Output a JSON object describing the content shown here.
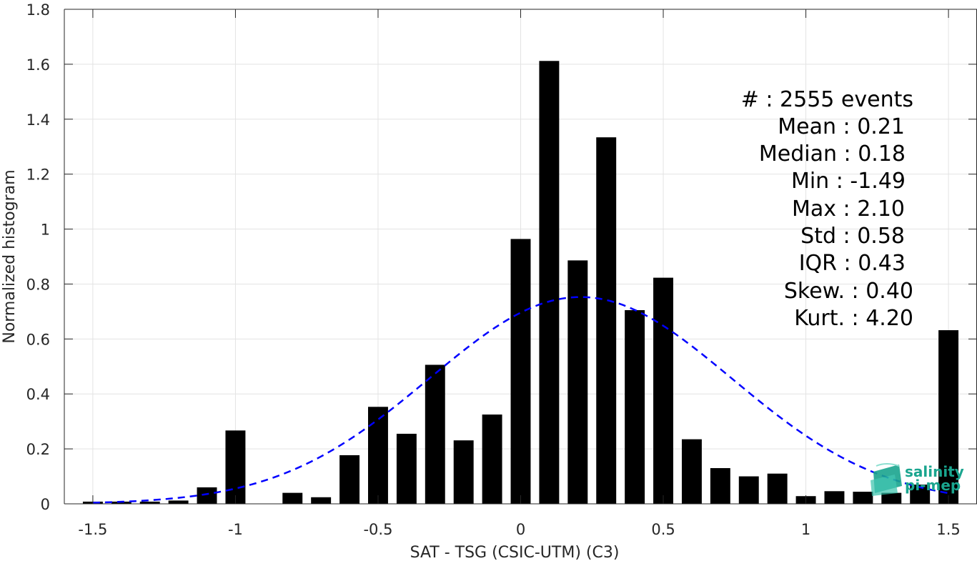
{
  "chart_data": {
    "type": "bar",
    "xlabel": "SAT - TSG (CSIC-UTM) (C3)",
    "ylabel": "Normalized histogram",
    "xlim": [
      -1.6,
      1.6
    ],
    "ylim": [
      0,
      1.8
    ],
    "grid": true,
    "bar_color": "#000000",
    "fit_color": "#0000ff",
    "x_ticks": [
      {
        "value": -1.5,
        "label": "-1.5"
      },
      {
        "value": -1.0,
        "label": "-1"
      },
      {
        "value": -0.5,
        "label": "-0.5"
      },
      {
        "value": 0.0,
        "label": "0"
      },
      {
        "value": 0.5,
        "label": "0.5"
      },
      {
        "value": 1.0,
        "label": "1"
      },
      {
        "value": 1.5,
        "label": "1.5"
      }
    ],
    "y_ticks": [
      {
        "value": 0,
        "label": "0"
      },
      {
        "value": 0.2,
        "label": "0.2"
      },
      {
        "value": 0.4,
        "label": "0.4"
      },
      {
        "value": 0.6,
        "label": "0.6"
      },
      {
        "value": 0.8,
        "label": "0.8"
      },
      {
        "value": 1.0,
        "label": "1"
      },
      {
        "value": 1.2,
        "label": "1.2"
      },
      {
        "value": 1.4,
        "label": "1.4"
      },
      {
        "value": 1.6,
        "label": "1.6"
      },
      {
        "value": 1.8,
        "label": "1.8"
      }
    ],
    "bar_width": 0.07,
    "bins": [
      {
        "x": -1.5,
        "y": 0.008
      },
      {
        "x": -1.4,
        "y": 0.008
      },
      {
        "x": -1.3,
        "y": 0.008
      },
      {
        "x": -1.2,
        "y": 0.012
      },
      {
        "x": -1.1,
        "y": 0.06
      },
      {
        "x": -1.0,
        "y": 0.267
      },
      {
        "x": -0.9,
        "y": 0.0
      },
      {
        "x": -0.8,
        "y": 0.04
      },
      {
        "x": -0.7,
        "y": 0.024
      },
      {
        "x": -0.6,
        "y": 0.177
      },
      {
        "x": -0.5,
        "y": 0.353
      },
      {
        "x": -0.4,
        "y": 0.255
      },
      {
        "x": -0.3,
        "y": 0.506
      },
      {
        "x": -0.2,
        "y": 0.231
      },
      {
        "x": -0.1,
        "y": 0.325
      },
      {
        "x": 0.0,
        "y": 0.964
      },
      {
        "x": 0.1,
        "y": 1.612
      },
      {
        "x": 0.2,
        "y": 0.886
      },
      {
        "x": 0.3,
        "y": 1.334
      },
      {
        "x": 0.4,
        "y": 0.705
      },
      {
        "x": 0.5,
        "y": 0.823
      },
      {
        "x": 0.6,
        "y": 0.235
      },
      {
        "x": 0.7,
        "y": 0.13
      },
      {
        "x": 0.8,
        "y": 0.1
      },
      {
        "x": 0.9,
        "y": 0.11
      },
      {
        "x": 1.0,
        "y": 0.028
      },
      {
        "x": 1.1,
        "y": 0.046
      },
      {
        "x": 1.2,
        "y": 0.044
      },
      {
        "x": 1.3,
        "y": 0.04
      },
      {
        "x": 1.4,
        "y": 0.07
      },
      {
        "x": 1.5,
        "y": 0.632
      }
    ],
    "gaussian_fit": {
      "mean": 0.21,
      "std": 0.53,
      "x_range": [
        -1.5,
        1.5
      ]
    },
    "stats": [
      "#  : 2555 events",
      "Mean : 0.21",
      "Median : 0.18",
      "Min : -1.49",
      "Max : 2.10",
      "Std : 0.58",
      "IQR : 0.43",
      "Skew. : 0.40",
      "Kurt. : 4.20"
    ]
  },
  "logo": {
    "line1": "salinity",
    "line2": "pi-mep",
    "icon": "salinity-pimep-logo-icon"
  }
}
